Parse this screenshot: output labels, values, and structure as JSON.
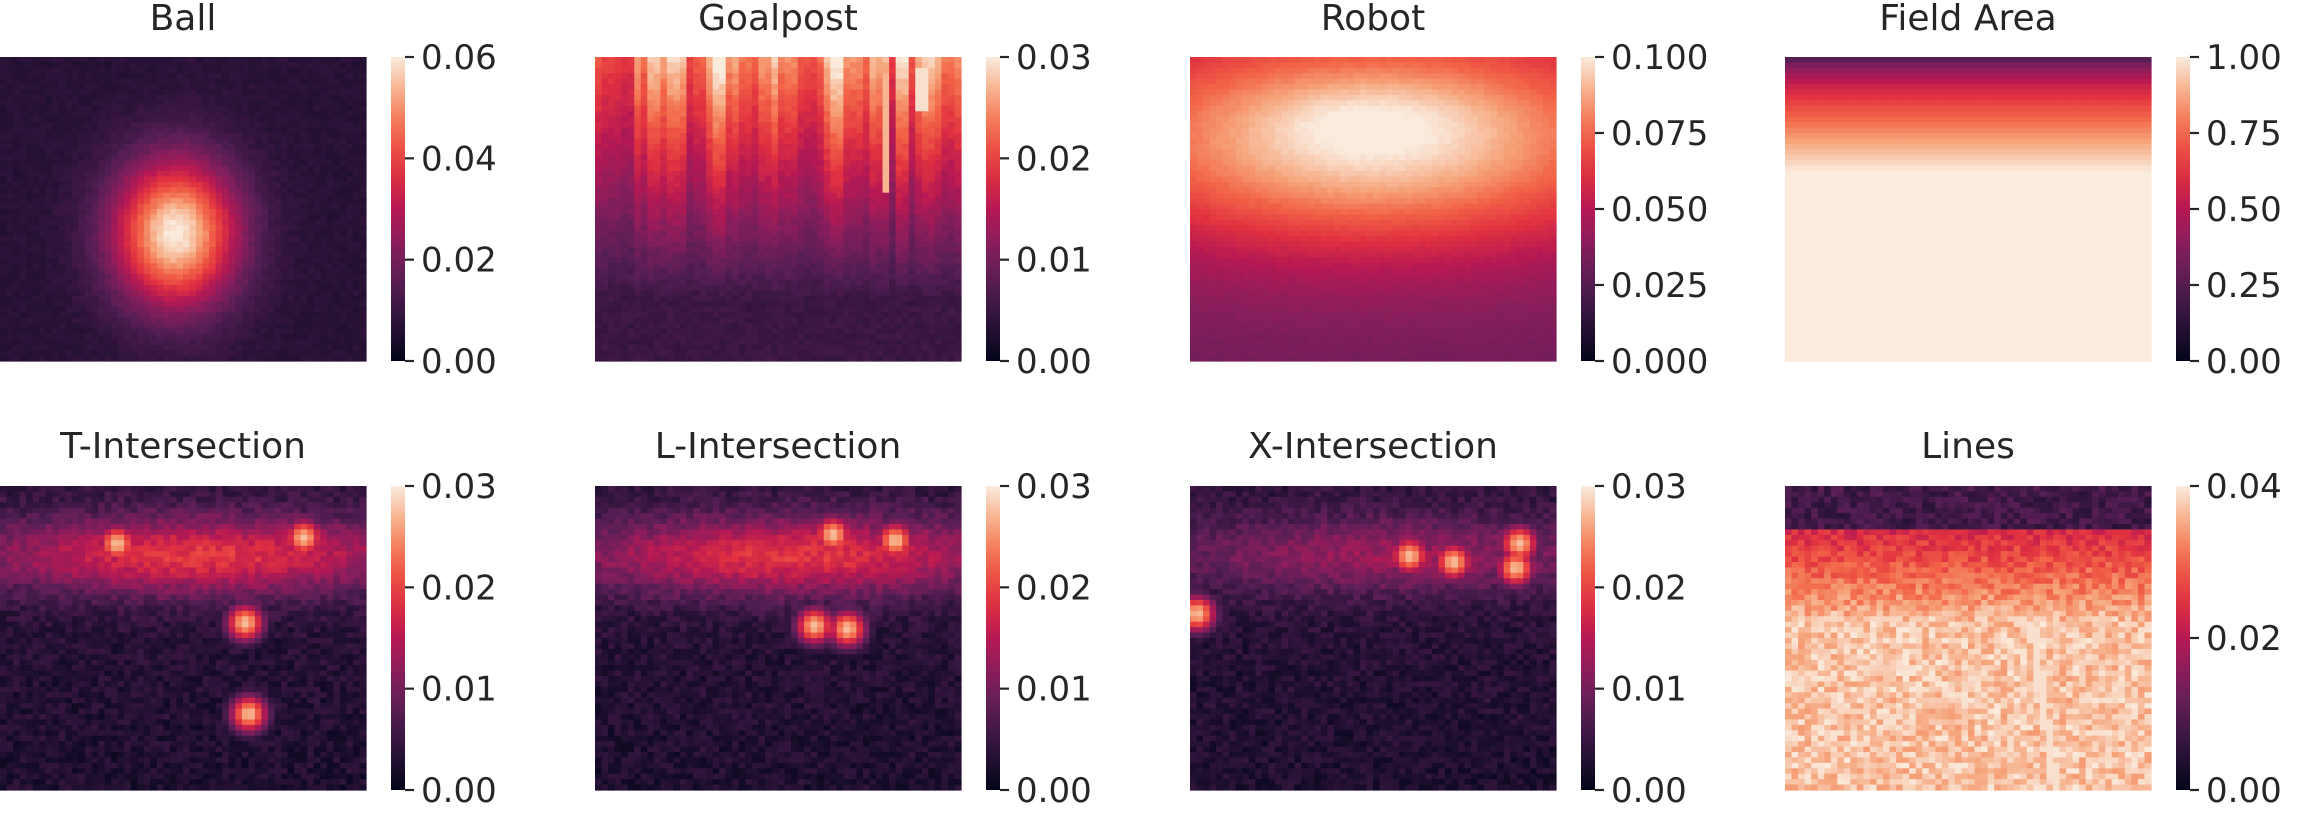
{
  "chart_data": [
    {
      "type": "heatmap",
      "title": "Ball",
      "colormap": "rocket",
      "vmin": 0.0,
      "vmax": 0.06,
      "colorbar_ticks": [
        "0.00",
        "0.02",
        "0.04",
        "0.06"
      ],
      "pattern": "blob",
      "blob_center": [
        0.48,
        0.58
      ]
    },
    {
      "type": "heatmap",
      "title": "Goalpost",
      "colormap": "rocket",
      "vmin": 0.0,
      "vmax": 0.03,
      "colorbar_ticks": [
        "0.00",
        "0.01",
        "0.02",
        "0.03"
      ],
      "pattern": "top-streaks"
    },
    {
      "type": "heatmap",
      "title": "Robot",
      "colormap": "rocket",
      "vmin": 0.0,
      "vmax": 0.1,
      "colorbar_ticks": [
        "0.000",
        "0.025",
        "0.050",
        "0.075",
        "0.100"
      ],
      "pattern": "upper-band"
    },
    {
      "type": "heatmap",
      "title": "Field Area",
      "colormap": "rocket",
      "vmin": 0.0,
      "vmax": 1.0,
      "colorbar_ticks": [
        "0.00",
        "0.25",
        "0.50",
        "0.75",
        "1.00"
      ],
      "pattern": "vertical-gradient"
    },
    {
      "type": "heatmap",
      "title": "T-Intersection",
      "colormap": "rocket",
      "vmin": 0.0,
      "vmax": 0.03,
      "colorbar_ticks": [
        "0.00",
        "0.01",
        "0.02",
        "0.03"
      ],
      "pattern": "band-spots",
      "spots": [
        [
          0.32,
          0.19
        ],
        [
          0.83,
          0.17
        ],
        [
          0.67,
          0.45
        ],
        [
          0.68,
          0.75
        ]
      ]
    },
    {
      "type": "heatmap",
      "title": "L-Intersection",
      "colormap": "rocket",
      "vmin": 0.0,
      "vmax": 0.03,
      "colorbar_ticks": [
        "0.00",
        "0.01",
        "0.02",
        "0.03"
      ],
      "pattern": "band-spots",
      "spots": [
        [
          0.65,
          0.16
        ],
        [
          0.82,
          0.18
        ],
        [
          0.6,
          0.46
        ],
        [
          0.69,
          0.47
        ]
      ]
    },
    {
      "type": "heatmap",
      "title": "X-Intersection",
      "colormap": "rocket",
      "vmin": 0.0,
      "vmax": 0.03,
      "colorbar_ticks": [
        "0.00",
        "0.01",
        "0.02",
        "0.03"
      ],
      "pattern": "sparse-spots",
      "spots": [
        [
          0.6,
          0.23
        ],
        [
          0.72,
          0.25
        ],
        [
          0.9,
          0.19
        ],
        [
          0.89,
          0.27
        ],
        [
          0.02,
          0.42
        ]
      ]
    },
    {
      "type": "heatmap",
      "title": "Lines",
      "colormap": "rocket",
      "vmin": 0.0,
      "vmax": 0.04,
      "colorbar_ticks": [
        "0.00",
        "0.02",
        "0.04"
      ],
      "pattern": "bright-field"
    }
  ]
}
